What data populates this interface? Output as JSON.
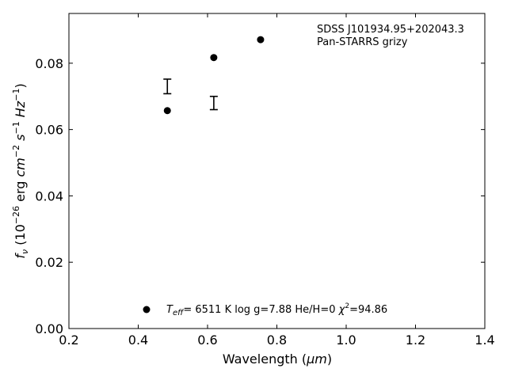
{
  "chart_data": {
    "type": "scatter",
    "title": "",
    "xlabel_main": "Wavelength (",
    "xlabel_unit": "μm",
    "xlabel_end": ")",
    "ylabel_f": "f",
    "ylabel_sub": "ν",
    "ylabel_open": " (10",
    "ylabel_exp26": "−26",
    "ylabel_erg": " erg ",
    "ylabel_cm": "cm",
    "ylabel_expm2": "−2",
    "ylabel_s": " s",
    "ylabel_expm1a": "−1",
    "ylabel_hz": " Hz",
    "ylabel_expm1b": "−1",
    "ylabel_close": ")",
    "xlim": [
      0.2,
      1.4
    ],
    "ylim": [
      0.0,
      0.095
    ],
    "xticks": [
      0.2,
      0.4,
      0.6,
      0.8,
      1.0,
      1.2,
      1.4
    ],
    "xtick_labels": [
      "0.2",
      "0.4",
      "0.6",
      "0.8",
      "1.0",
      "1.2",
      "1.4"
    ],
    "yticks": [
      0.0,
      0.02,
      0.04,
      0.06,
      0.08
    ],
    "ytick_labels": [
      "0.00",
      "0.02",
      "0.04",
      "0.06",
      "0.08"
    ],
    "grid": false,
    "series": [
      {
        "kind": "model",
        "marker": "circle",
        "color": "#000000",
        "points": [
          {
            "x": 0.484,
            "y": 0.0657
          },
          {
            "x": 0.618,
            "y": 0.0817
          },
          {
            "x": 0.753,
            "y": 0.0871
          }
        ]
      },
      {
        "kind": "observed",
        "marker": "errorbar",
        "color": "#000000",
        "points": [
          {
            "x": 0.484,
            "y": 0.073,
            "yerr": 0.0022
          },
          {
            "x": 0.618,
            "y": 0.068,
            "yerr": 0.002
          }
        ]
      }
    ],
    "annotations": {
      "object_name": "SDSS J101934.95+202043.3",
      "survey": "Pan-STARRS grizy"
    },
    "legend": {
      "position": "lower-center",
      "marker": "circle",
      "teff_symbol": "T",
      "teff_sub": "eff",
      "teff_text": "=  6511 K  log g=7.88  He/H=0  ",
      "chi_symbol": "χ",
      "chi_sup": "2",
      "chi_text": "=94.86"
    }
  }
}
